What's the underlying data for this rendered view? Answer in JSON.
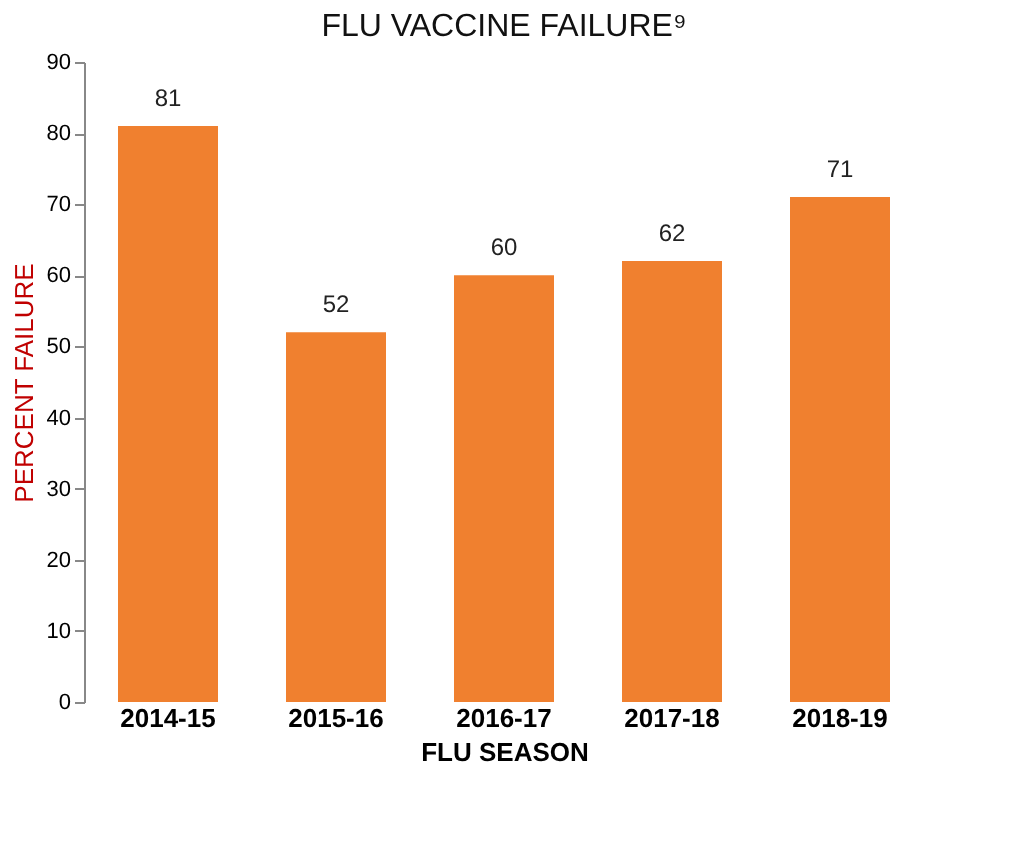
{
  "chart_data": {
    "type": "bar",
    "title": "FLU VACCINE FAILURE⁹",
    "xlabel": "FLU SEASON",
    "ylabel": "PERCENT FAILURE",
    "categories": [
      "2014-15",
      "2015-16",
      "2016-17",
      "2017-18",
      "2018-19"
    ],
    "values": [
      81,
      52,
      60,
      62,
      71
    ],
    "color": "#f0802f",
    "ylim": [
      0,
      90
    ],
    "yticks": [
      0,
      10,
      20,
      30,
      40,
      50,
      60,
      70,
      80,
      90
    ],
    "grid": false,
    "data_labels": true
  }
}
